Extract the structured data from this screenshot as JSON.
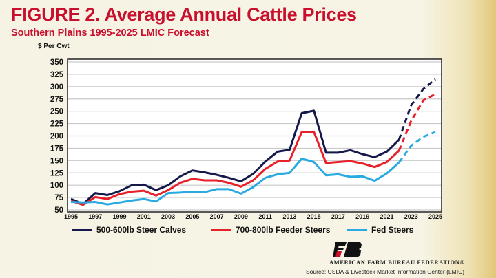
{
  "title": "FIGURE 2. Average Annual Cattle Prices",
  "subtitle": "Southern Plains 1995-2025 LMIC Forecast",
  "organization": "AMERICAN FARM BUREAU FEDERATION®",
  "logo_text": "FB",
  "source": "Source:  USDA & Livestock Market Information Center (LMIC)",
  "colors": {
    "title": "#c8102e",
    "steer_calves": "#14184a",
    "feeder_steers": "#e8202a",
    "fed_steers": "#29abe2"
  },
  "chart_data": {
    "type": "line",
    "title": "FIGURE 2. Average Annual Cattle Prices",
    "subtitle": "Southern Plains 1995-2025 LMIC Forecast",
    "ylabel": "$ Per Cwt",
    "xlabel": "",
    "ylim": [
      50,
      350
    ],
    "yticks": [
      "50",
      "75",
      "100",
      "125",
      "150",
      "175",
      "200",
      "225",
      "250",
      "275",
      "300",
      "325",
      "350"
    ],
    "xlim": [
      1995,
      2025
    ],
    "xticks": [
      "1995",
      "1997",
      "1999",
      "2001",
      "2003",
      "2005",
      "2007",
      "2009",
      "2011",
      "2013",
      "2015",
      "2017",
      "2019",
      "2021",
      "2023",
      "2025"
    ],
    "grid": true,
    "legend_position": "bottom",
    "forecast_dashed_from": 2022,
    "x": [
      1995,
      1996,
      1997,
      1998,
      1999,
      2000,
      2001,
      2002,
      2003,
      2004,
      2005,
      2006,
      2007,
      2008,
      2009,
      2010,
      2011,
      2012,
      2013,
      2014,
      2015,
      2016,
      2017,
      2018,
      2019,
      2020,
      2021,
      2022,
      2023,
      2024,
      2025
    ],
    "series": [
      {
        "name": "500-600lb Steer Calves",
        "color": "#14184a",
        "values": [
          72,
          62,
          84,
          80,
          88,
          100,
          101,
          90,
          100,
          118,
          130,
          126,
          121,
          115,
          108,
          123,
          148,
          168,
          172,
          246,
          251,
          166,
          166,
          171,
          163,
          157,
          168,
          192,
          262,
          295,
          315
        ]
      },
      {
        "name": "700-800lb Feeder Steers",
        "color": "#e8202a",
        "values": [
          68,
          60,
          76,
          72,
          82,
          87,
          89,
          79,
          90,
          105,
          113,
          110,
          110,
          105,
          97,
          110,
          133,
          148,
          150,
          208,
          208,
          145,
          147,
          149,
          144,
          137,
          147,
          170,
          230,
          272,
          285
        ]
      },
      {
        "name": "Fed Steers",
        "color": "#29abe2",
        "values": [
          66,
          65,
          66,
          61,
          65,
          69,
          72,
          67,
          84,
          85,
          87,
          86,
          92,
          92,
          83,
          96,
          115,
          122,
          125,
          154,
          147,
          120,
          122,
          117,
          118,
          109,
          124,
          146,
          180,
          198,
          208
        ]
      }
    ]
  }
}
